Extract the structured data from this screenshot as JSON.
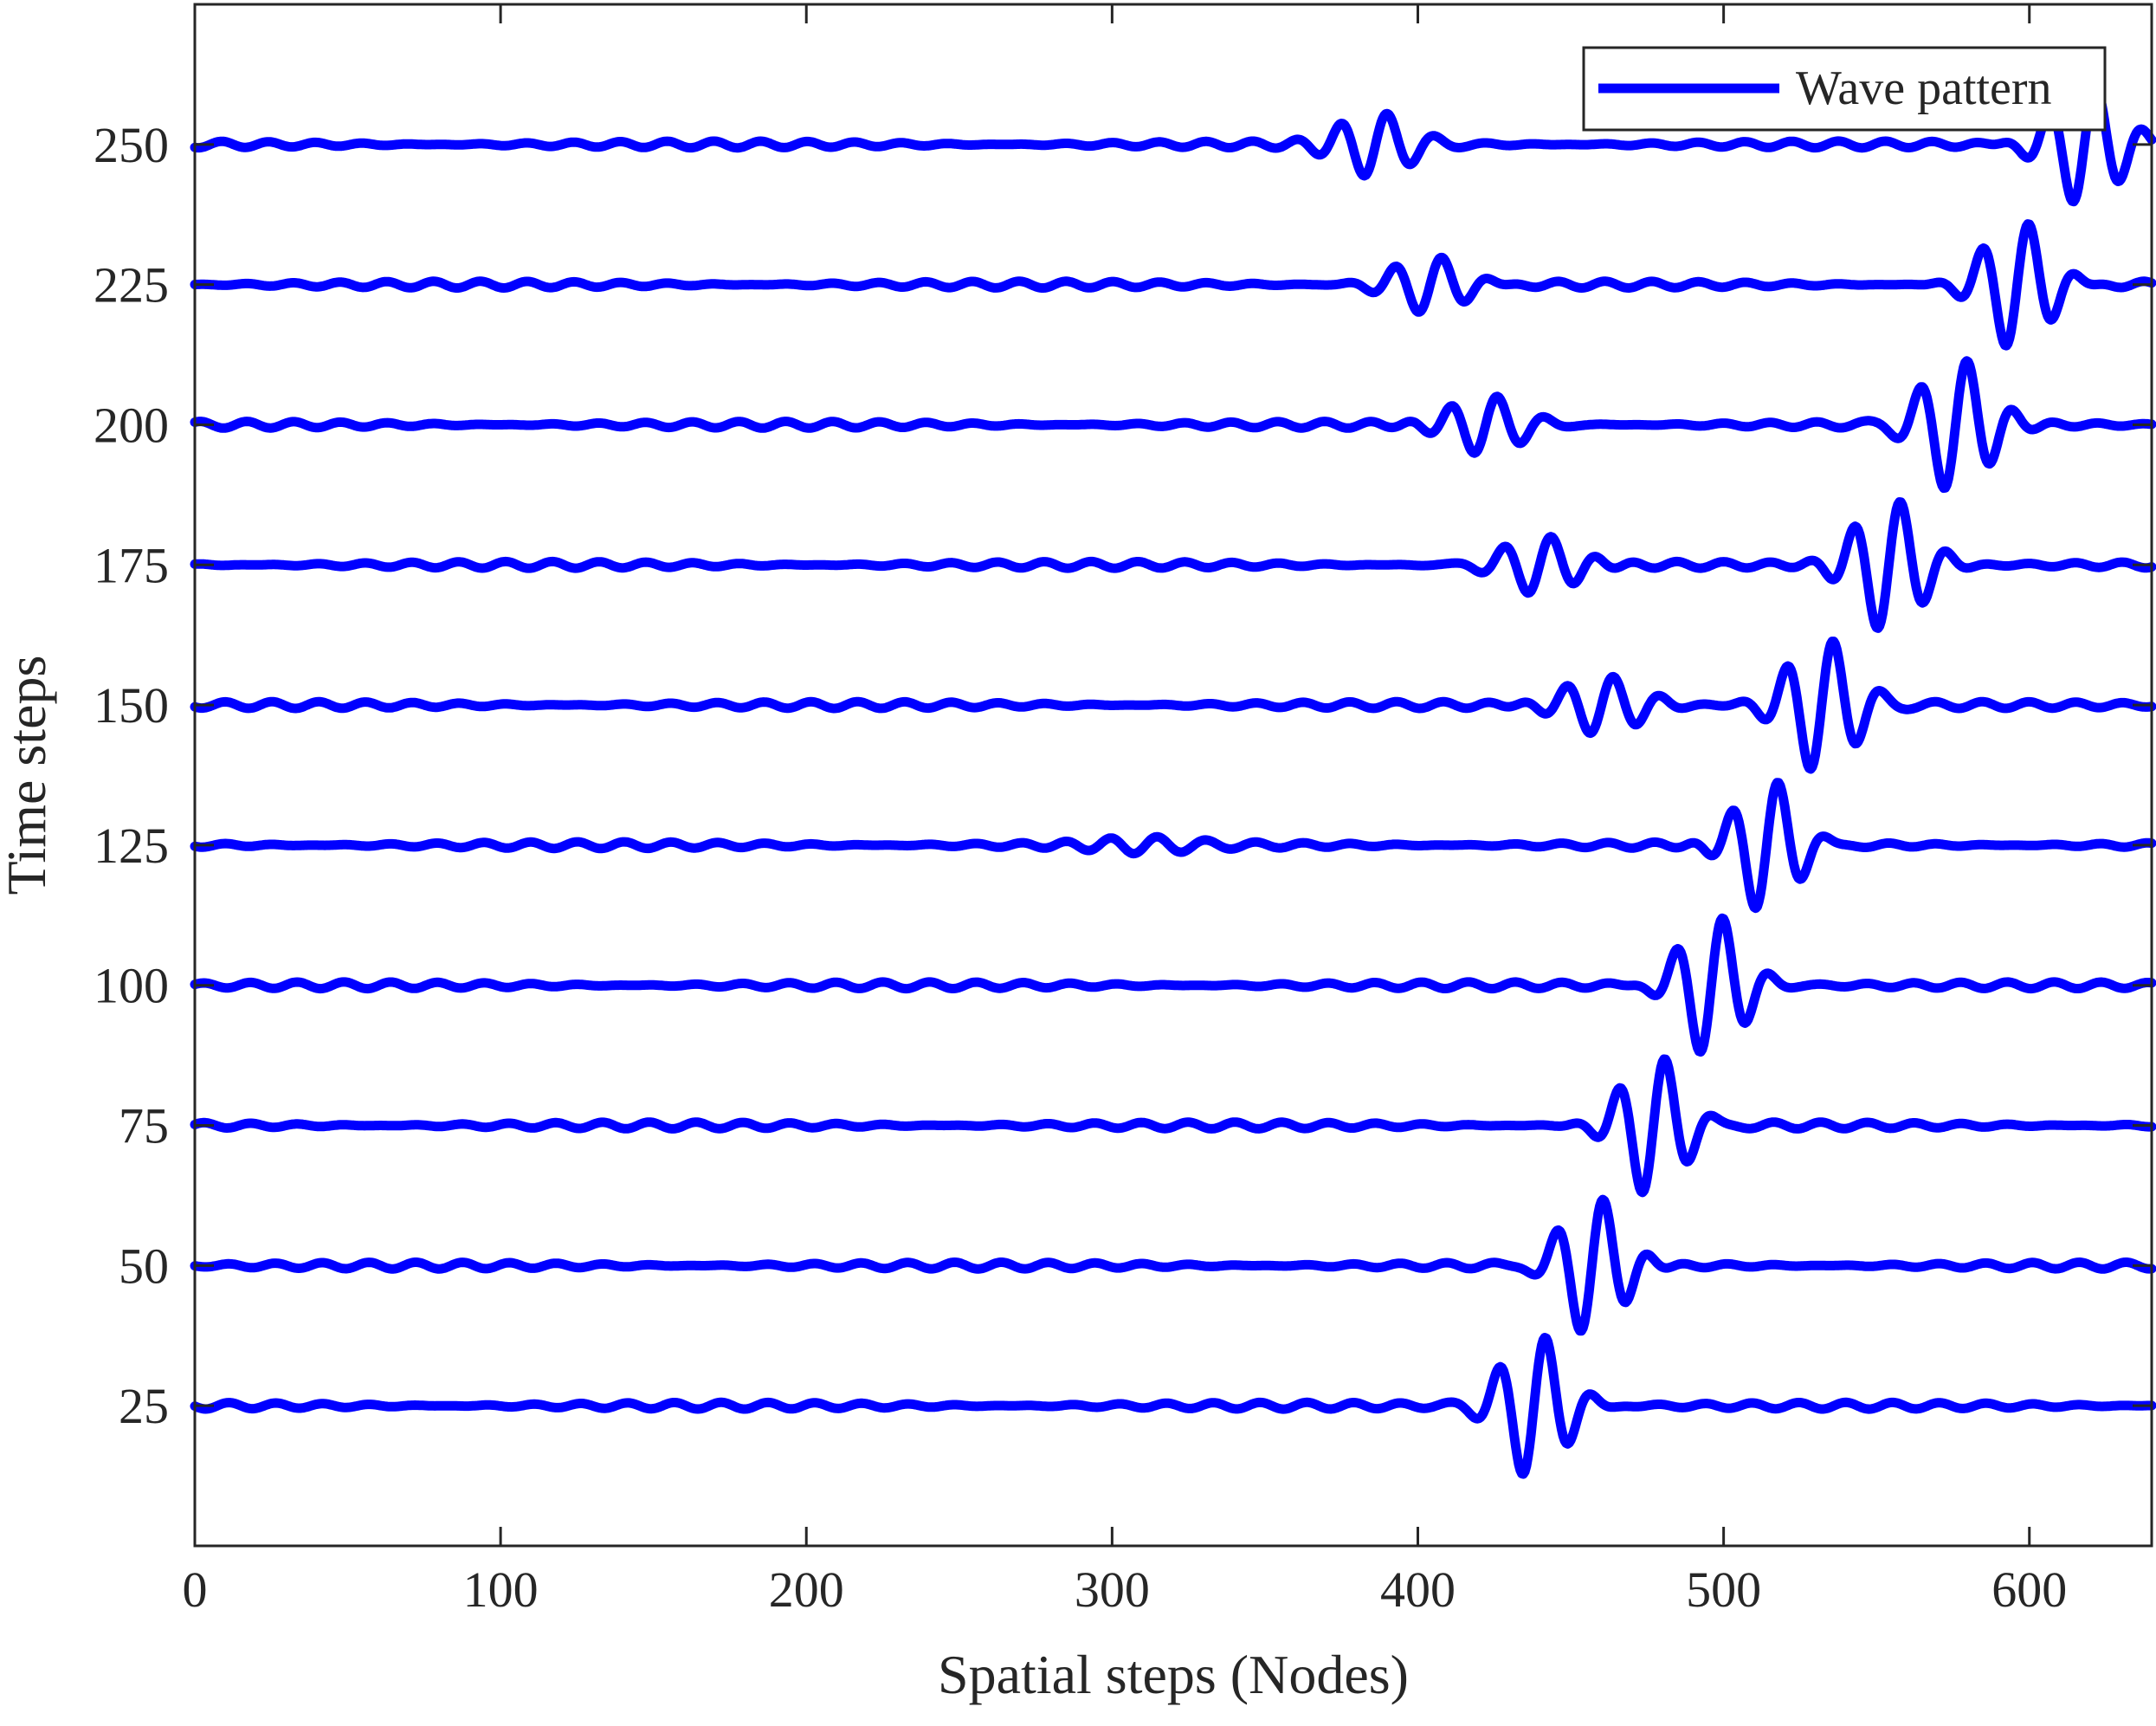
{
  "chart_data": {
    "type": "line",
    "title": "",
    "xlabel": "Spatial steps (Nodes)",
    "ylabel": "Time steps",
    "xlim": [
      0,
      640
    ],
    "ylim": [
      0,
      275
    ],
    "xticks": [
      0,
      100,
      200,
      300,
      400,
      500,
      600
    ],
    "yticks": [
      25,
      50,
      75,
      100,
      125,
      150,
      175,
      200,
      225,
      250
    ],
    "grid": false,
    "legend": {
      "position": "top-right",
      "entries": [
        "Wave pattern"
      ]
    },
    "color": "#0000ff",
    "series": [
      {
        "name": "Wave pattern",
        "traces": [
          {
            "time_step": 25,
            "packets": [
              {
                "center": 438,
                "width": 14,
                "amplitude": 13,
                "wavelength": 15.5
              }
            ]
          },
          {
            "time_step": 50,
            "packets": [
              {
                "center": 457,
                "width": 14,
                "amplitude": 13,
                "wavelength": 15.5
              }
            ]
          },
          {
            "time_step": 75,
            "packets": [
              {
                "center": 477,
                "width": 14,
                "amplitude": 13,
                "wavelength": 15.5
              }
            ]
          },
          {
            "time_step": 100,
            "packets": [
              {
                "center": 496,
                "width": 14,
                "amplitude": 13,
                "wavelength": 15.5
              }
            ]
          },
          {
            "time_step": 125,
            "packets": [
              {
                "center": 514,
                "width": 14,
                "amplitude": 12.5,
                "wavelength": 15.5
              },
              {
                "center": 310,
                "width": 22,
                "amplitude": 1.2,
                "wavelength": 15.5
              }
            ]
          },
          {
            "time_step": 150,
            "packets": [
              {
                "center": 532,
                "width": 15,
                "amplitude": 12,
                "wavelength": 15.5
              },
              {
                "center": 460,
                "width": 18,
                "amplitude": 5.5,
                "wavelength": 15.5
              }
            ]
          },
          {
            "time_step": 175,
            "packets": [
              {
                "center": 554,
                "width": 15,
                "amplitude": 12,
                "wavelength": 15.5
              },
              {
                "center": 440,
                "width": 17,
                "amplitude": 5.5,
                "wavelength": 15.5
              }
            ]
          },
          {
            "time_step": 200,
            "packets": [
              {
                "center": 576,
                "width": 15,
                "amplitude": 12,
                "wavelength": 15.5
              },
              {
                "center": 422,
                "width": 17,
                "amplitude": 5.5,
                "wavelength": 15.5
              }
            ]
          },
          {
            "time_step": 225,
            "packets": [
              {
                "center": 596,
                "width": 15,
                "amplitude": 12,
                "wavelength": 15.5
              },
              {
                "center": 404,
                "width": 17,
                "amplitude": 5.5,
                "wavelength": 15.5
              }
            ]
          },
          {
            "time_step": 250,
            "packets": [
              {
                "center": 618,
                "width": 16,
                "amplitude": 11,
                "wavelength": 15.5
              },
              {
                "center": 386,
                "width": 16,
                "amplitude": 5.5,
                "wavelength": 15.5
              }
            ]
          }
        ]
      }
    ]
  }
}
